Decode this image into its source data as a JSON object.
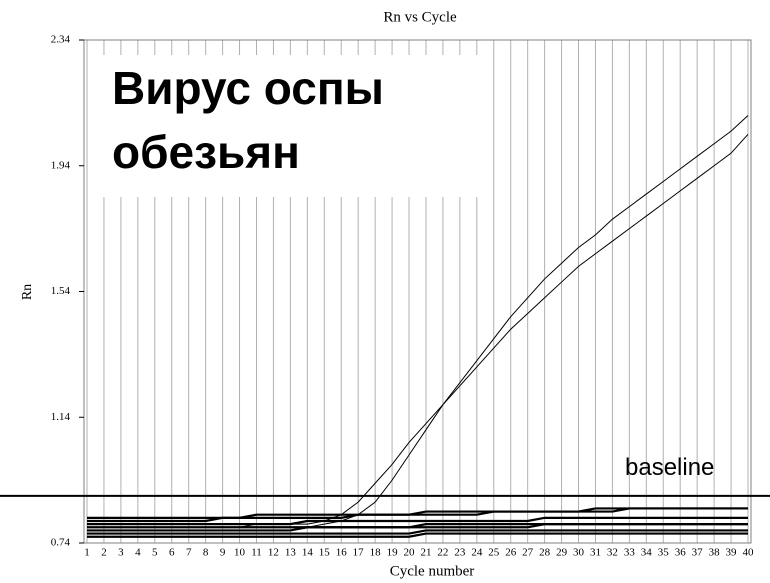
{
  "chart_data": {
    "type": "line",
    "title": "Rn vs Cycle",
    "xlabel": "Cycle number",
    "ylabel": "Rn",
    "annotation_lines": [
      "Вирус оспы",
      "обезьян"
    ],
    "baseline": {
      "value": 0.89,
      "label": "baseline"
    },
    "x": [
      1,
      2,
      3,
      4,
      5,
      6,
      7,
      8,
      9,
      10,
      11,
      12,
      13,
      14,
      15,
      16,
      17,
      18,
      19,
      20,
      21,
      22,
      23,
      24,
      25,
      26,
      27,
      28,
      29,
      30,
      31,
      32,
      33,
      34,
      35,
      36,
      37,
      38,
      39,
      40
    ],
    "xlim": [
      1,
      40
    ],
    "xticks": [
      1,
      2,
      3,
      4,
      5,
      6,
      7,
      8,
      9,
      10,
      11,
      12,
      13,
      14,
      15,
      16,
      17,
      18,
      19,
      20,
      21,
      22,
      23,
      24,
      25,
      26,
      27,
      28,
      29,
      30,
      31,
      32,
      33,
      34,
      35,
      36,
      37,
      38,
      39,
      40
    ],
    "ylim": [
      0.74,
      2.34
    ],
    "yticks": [
      0.74,
      1.14,
      1.54,
      1.94,
      2.34
    ],
    "grid": true,
    "series": [
      {
        "color": "#000000",
        "values": [
          0.79,
          0.79,
          0.79,
          0.79,
          0.79,
          0.79,
          0.79,
          0.79,
          0.79,
          0.79,
          0.8,
          0.8,
          0.8,
          0.8,
          0.81,
          0.83,
          0.87,
          0.93,
          0.99,
          1.06,
          1.12,
          1.18,
          1.24,
          1.3,
          1.36,
          1.42,
          1.47,
          1.52,
          1.57,
          1.62,
          1.66,
          1.7,
          1.74,
          1.78,
          1.82,
          1.86,
          1.9,
          1.94,
          1.98,
          2.04
        ]
      },
      {
        "color": "#000000",
        "values": [
          0.78,
          0.78,
          0.78,
          0.78,
          0.78,
          0.78,
          0.78,
          0.78,
          0.78,
          0.78,
          0.78,
          0.78,
          0.78,
          0.79,
          0.8,
          0.81,
          0.83,
          0.87,
          0.94,
          1.02,
          1.1,
          1.18,
          1.25,
          1.32,
          1.39,
          1.46,
          1.52,
          1.58,
          1.63,
          1.68,
          1.72,
          1.77,
          1.81,
          1.85,
          1.89,
          1.93,
          1.97,
          2.01,
          2.05,
          2.1
        ]
      },
      {
        "color": "#000000",
        "values": [
          0.81,
          0.81,
          0.81,
          0.81,
          0.81,
          0.81,
          0.81,
          0.81,
          0.82,
          0.82,
          0.82,
          0.82,
          0.82,
          0.82,
          0.82,
          0.82,
          0.83,
          0.83,
          0.83,
          0.83,
          0.83,
          0.83,
          0.83,
          0.83,
          0.84,
          0.84,
          0.84,
          0.84,
          0.84,
          0.84,
          0.84,
          0.84,
          0.85,
          0.85,
          0.85,
          0.85,
          0.85,
          0.85,
          0.85,
          0.85
        ]
      },
      {
        "color": "#000000",
        "values": [
          0.8,
          0.8,
          0.8,
          0.8,
          0.8,
          0.8,
          0.8,
          0.8,
          0.8,
          0.8,
          0.8,
          0.8,
          0.8,
          0.81,
          0.81,
          0.81,
          0.81,
          0.81,
          0.81,
          0.81,
          0.81,
          0.81,
          0.81,
          0.81,
          0.81,
          0.81,
          0.81,
          0.82,
          0.82,
          0.82,
          0.82,
          0.82,
          0.82,
          0.82,
          0.82,
          0.82,
          0.82,
          0.82,
          0.82,
          0.82
        ]
      },
      {
        "color": "#000000",
        "values": [
          0.79,
          0.79,
          0.79,
          0.79,
          0.79,
          0.79,
          0.79,
          0.79,
          0.79,
          0.79,
          0.79,
          0.79,
          0.79,
          0.79,
          0.79,
          0.79,
          0.79,
          0.79,
          0.79,
          0.79,
          0.8,
          0.8,
          0.8,
          0.8,
          0.8,
          0.8,
          0.8,
          0.8,
          0.8,
          0.8,
          0.8,
          0.8,
          0.8,
          0.8,
          0.8,
          0.8,
          0.8,
          0.8,
          0.8,
          0.8
        ]
      },
      {
        "color": "#000000",
        "values": [
          0.78,
          0.78,
          0.78,
          0.78,
          0.78,
          0.78,
          0.78,
          0.78,
          0.78,
          0.78,
          0.78,
          0.78,
          0.78,
          0.79,
          0.79,
          0.79,
          0.79,
          0.79,
          0.79,
          0.79,
          0.79,
          0.79,
          0.79,
          0.79,
          0.79,
          0.79,
          0.79,
          0.8,
          0.8,
          0.8,
          0.8,
          0.8,
          0.8,
          0.8,
          0.8,
          0.8,
          0.8,
          0.8,
          0.8,
          0.8
        ]
      },
      {
        "color": "#000000",
        "values": [
          0.77,
          0.77,
          0.77,
          0.77,
          0.77,
          0.77,
          0.77,
          0.77,
          0.77,
          0.77,
          0.77,
          0.77,
          0.77,
          0.77,
          0.77,
          0.77,
          0.77,
          0.77,
          0.77,
          0.77,
          0.78,
          0.78,
          0.78,
          0.78,
          0.78,
          0.78,
          0.78,
          0.78,
          0.78,
          0.78,
          0.78,
          0.78,
          0.78,
          0.78,
          0.78,
          0.78,
          0.78,
          0.78,
          0.78,
          0.78
        ]
      },
      {
        "color": "#000000",
        "values": [
          0.82,
          0.82,
          0.82,
          0.82,
          0.82,
          0.82,
          0.82,
          0.82,
          0.82,
          0.82,
          0.83,
          0.83,
          0.83,
          0.83,
          0.83,
          0.83,
          0.83,
          0.83,
          0.83,
          0.83,
          0.84,
          0.84,
          0.84,
          0.84,
          0.84,
          0.84,
          0.84,
          0.84,
          0.84,
          0.84,
          0.85,
          0.85,
          0.85,
          0.85,
          0.85,
          0.85,
          0.85,
          0.85,
          0.85,
          0.85
        ]
      },
      {
        "color": "#000000",
        "values": [
          0.76,
          0.76,
          0.76,
          0.76,
          0.76,
          0.76,
          0.76,
          0.76,
          0.76,
          0.76,
          0.76,
          0.76,
          0.76,
          0.76,
          0.76,
          0.76,
          0.76,
          0.76,
          0.76,
          0.76,
          0.77,
          0.77,
          0.77,
          0.77,
          0.77,
          0.77,
          0.77,
          0.77,
          0.77,
          0.77,
          0.77,
          0.77,
          0.77,
          0.77,
          0.77,
          0.77,
          0.77,
          0.77,
          0.77,
          0.77
        ]
      }
    ]
  }
}
